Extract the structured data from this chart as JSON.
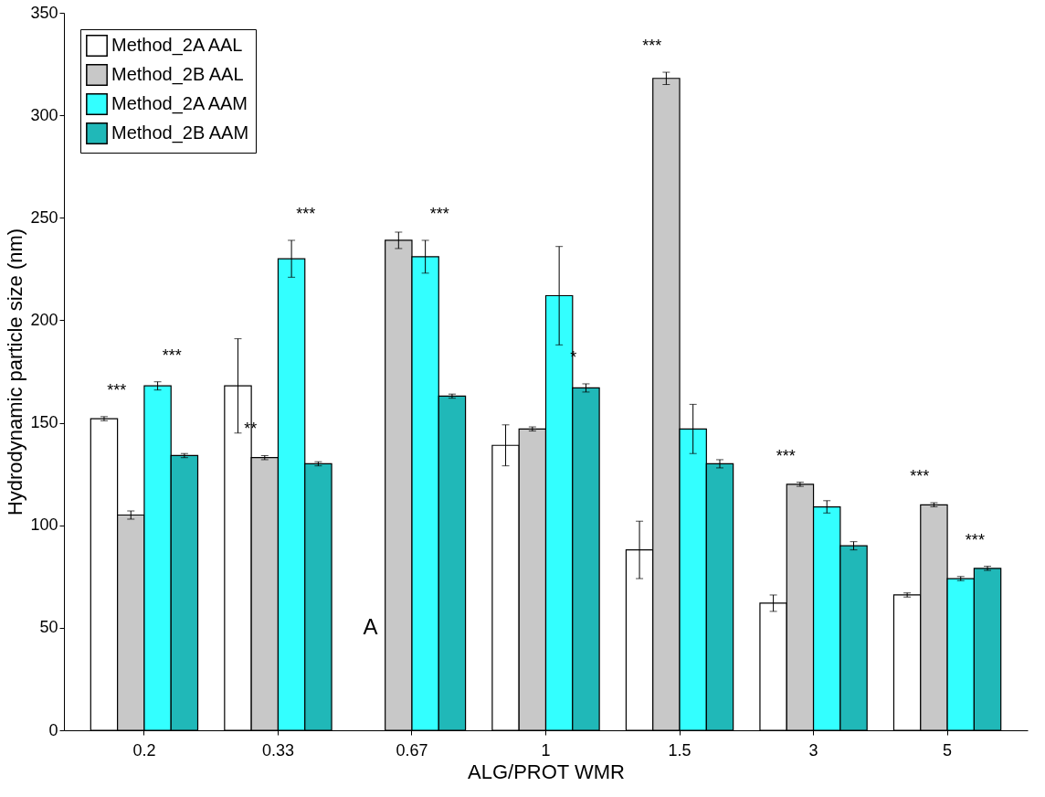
{
  "chart_data": {
    "type": "bar",
    "xlabel": "ALG/PROT WMR",
    "ylabel": "Hydrodynamic particle size (nm)",
    "categories": [
      "0.2",
      "0.33",
      "0.67",
      "1",
      "1.5",
      "3",
      "5"
    ],
    "series": [
      {
        "name": "Method_2A AAL",
        "color": "#ffffff",
        "values": [
          152,
          168,
          null,
          139,
          88,
          62,
          66
        ],
        "errors": [
          1,
          23,
          null,
          10,
          14,
          4,
          1
        ]
      },
      {
        "name": "Method_2B AAL",
        "color": "#c8c8c8",
        "values": [
          105,
          133,
          239,
          147,
          318,
          120,
          110
        ],
        "errors": [
          2,
          1,
          4,
          1,
          3,
          1,
          1
        ]
      },
      {
        "name": "Method_2A AAM",
        "color": "#33ffff",
        "values": [
          168,
          230,
          231,
          212,
          147,
          109,
          74
        ],
        "errors": [
          2,
          9,
          8,
          24,
          12,
          3,
          1
        ]
      },
      {
        "name": "Method_2B AAM",
        "color": "#20b8b8",
        "values": [
          134,
          130,
          163,
          167,
          130,
          90,
          79
        ],
        "errors": [
          1,
          1,
          1,
          2,
          2,
          2,
          1
        ]
      }
    ],
    "ylim": [
      0,
      350
    ],
    "yticks": [
      0,
      50,
      100,
      150,
      200,
      250,
      300,
      350
    ],
    "grid": false,
    "legend": "top left",
    "annotations": [
      {
        "text": "***",
        "x": "0.2",
        "y": 152
      },
      {
        "text": "***",
        "x": "0.2",
        "y": 168
      },
      {
        "text": "**",
        "x": "0.33",
        "y": 133
      },
      {
        "text": "***",
        "x": "0.33",
        "y": 230
      },
      {
        "text": "A",
        "x": "0.67",
        "y": 50
      },
      {
        "text": "***",
        "x": "0.67",
        "y": 231
      },
      {
        "text": "*",
        "x": "1",
        "y": 167
      },
      {
        "text": "***",
        "x": "1.5",
        "y": 318
      },
      {
        "text": "***",
        "x": "3",
        "y": 120
      },
      {
        "text": "***",
        "x": "5",
        "y": 110
      },
      {
        "text": "***",
        "x": "5",
        "y": 79
      }
    ]
  }
}
